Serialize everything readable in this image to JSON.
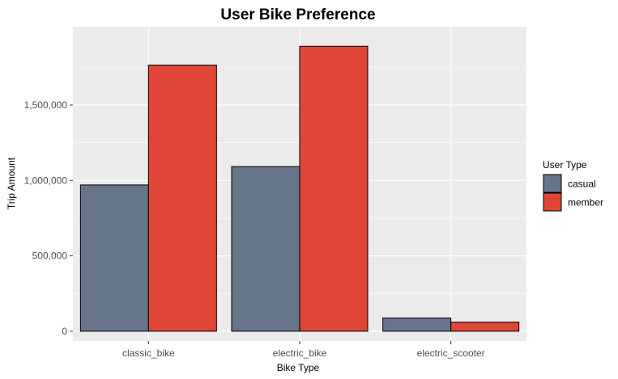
{
  "chart_data": {
    "type": "bar",
    "title": "User Bike Preference",
    "xlabel": "Bike Type",
    "ylabel": "Trip Amount",
    "categories": [
      "classic_bike",
      "electric_bike",
      "electric_scooter"
    ],
    "series": [
      {
        "name": "casual",
        "color": "#667589",
        "values": [
          970000,
          1092000,
          88000
        ]
      },
      {
        "name": "member",
        "color": "#df4638",
        "values": [
          1765000,
          1890000,
          60000
        ]
      }
    ],
    "ylim": [
      -65000,
      2020000
    ],
    "yticks": [
      0,
      500000,
      1000000,
      1500000
    ],
    "ytick_labels": [
      "0",
      "500,000",
      "1,000,000",
      "1,500,000"
    ],
    "legend": {
      "title": "User Type",
      "position": "right"
    },
    "grid": true,
    "panel_background": "#ebebeb",
    "gridline_color": "#ffffff",
    "bar_outline_color": "#000000"
  }
}
